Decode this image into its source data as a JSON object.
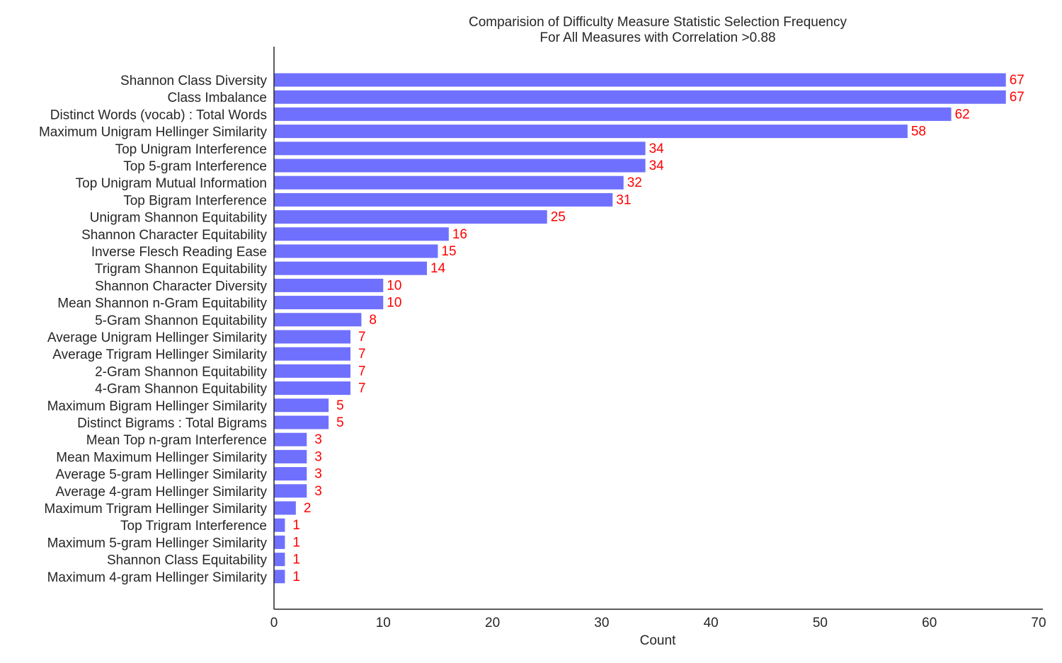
{
  "chart_data": {
    "type": "bar",
    "orientation": "horizontal",
    "title": "Comparision of Difficulty Measure Statistic Selection Frequency",
    "subtitle": "For All Measures with Correlation >0.88",
    "xlabel": "Count",
    "ylabel": "",
    "xlim": [
      0,
      70
    ],
    "xticks": [
      0,
      10,
      20,
      30,
      40,
      50,
      60,
      70
    ],
    "grid": false,
    "bar_color": "#7070ff",
    "label_color": "#ff0000",
    "categories": [
      "Shannon Class Diversity",
      "Class Imbalance",
      "Distinct Words (vocab) : Total Words",
      "Maximum Unigram Hellinger Similarity",
      "Top Unigram Interference",
      "Top 5-gram Interference",
      "Top Unigram Mutual Information",
      "Top Bigram Interference",
      "Unigram Shannon Equitability",
      "Shannon Character Equitability",
      "Inverse Flesch Reading Ease",
      "Trigram Shannon Equitability",
      "Shannon Character Diversity",
      "Mean Shannon n-Gram Equitability",
      "5-Gram Shannon Equitability",
      "Average Unigram Hellinger Similarity",
      "Average Trigram Hellinger Similarity",
      "2-Gram Shannon Equitability",
      "4-Gram Shannon Equitability",
      "Maximum Bigram Hellinger Similarity",
      "Distinct Bigrams : Total Bigrams",
      "Mean Top n-gram Interference",
      "Mean Maximum Hellinger Similarity",
      "Average 5-gram Hellinger Similarity",
      "Average 4-gram Hellinger Similarity",
      "Maximum Trigram Hellinger Similarity",
      "Top Trigram Interference",
      "Maximum 5-gram Hellinger Similarity",
      "Shannon Class Equitability",
      "Maximum 4-gram Hellinger Similarity"
    ],
    "values": [
      67,
      67,
      62,
      58,
      34,
      34,
      32,
      31,
      25,
      16,
      15,
      14,
      10,
      10,
      8,
      7,
      7,
      7,
      7,
      5,
      5,
      3,
      3,
      3,
      3,
      2,
      1,
      1,
      1,
      1
    ]
  }
}
